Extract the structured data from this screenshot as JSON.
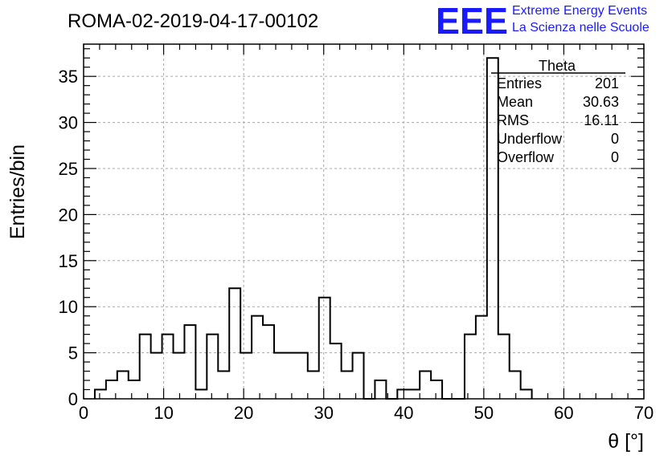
{
  "chart_data": {
    "type": "histogram",
    "title": "ROMA-02-2019-04-17-00102",
    "xlabel": "θ [°]",
    "ylabel": "Entries/bin",
    "xlim": [
      0,
      70
    ],
    "ylim": [
      0,
      38.5
    ],
    "x_ticks": [
      0,
      10,
      20,
      30,
      40,
      50,
      60,
      70
    ],
    "y_ticks": [
      0,
      5,
      10,
      15,
      20,
      25,
      30,
      35
    ],
    "grid": true,
    "bin_width": 1.4,
    "bin_edges": [
      1.4,
      2.8,
      4.2,
      5.6,
      7.0,
      8.4,
      9.8,
      11.2,
      12.6,
      14.0,
      15.4,
      16.8,
      18.2,
      19.6,
      21.0,
      22.4,
      23.8,
      25.2,
      26.6,
      28.0,
      29.4,
      30.8,
      32.2,
      33.6,
      35.0,
      36.4,
      37.8,
      39.2,
      40.6,
      42.0,
      43.4,
      44.8,
      46.2,
      47.6,
      49.0,
      50.4,
      51.8,
      53.2,
      54.6,
      56.0
    ],
    "values": [
      1,
      2,
      3,
      2,
      7,
      5,
      7,
      5,
      8,
      1,
      7,
      3,
      12,
      5,
      9,
      8,
      5,
      5,
      5,
      3,
      11,
      6,
      3,
      5,
      0,
      2,
      0,
      1,
      1,
      3,
      2,
      0,
      0,
      7,
      9,
      37,
      7,
      3,
      1
    ],
    "stats": {
      "name": "Theta",
      "rows": [
        {
          "label": "Entries",
          "value": "201"
        },
        {
          "label": "Mean",
          "value": "30.63"
        },
        {
          "label": "RMS",
          "value": "16.11"
        },
        {
          "label": "Underflow",
          "value": "0"
        },
        {
          "label": "Overflow",
          "value": "0"
        }
      ]
    }
  },
  "logo": {
    "mark": "EEE",
    "line1": "Extreme Energy Events",
    "line2": "La Scienza nelle Scuole",
    "color": "#1a1aff"
  }
}
